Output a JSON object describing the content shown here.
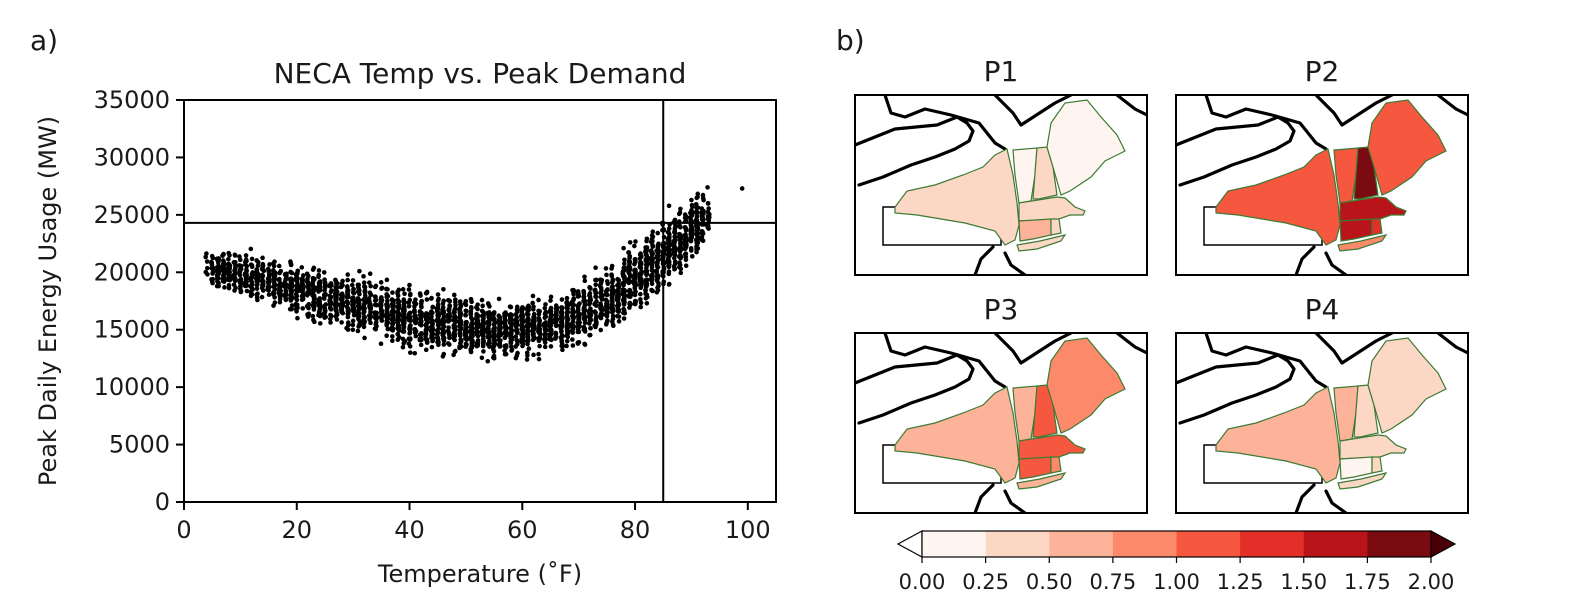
{
  "panel_a_label": "a)",
  "panel_b_label": "b)",
  "colors": {
    "markers": "#000000",
    "threshold_lines": "#000000",
    "region_border": "#3d7a34"
  },
  "chart_data": [
    {
      "type": "scatter",
      "title": "NECA Temp vs. Peak Demand",
      "xlabel": "Temperature (˚F)",
      "ylabel": "Peak Daily Energy Usage (MW)",
      "xlim": [
        0,
        105
      ],
      "ylim": [
        0,
        35000
      ],
      "xticks": [
        0,
        20,
        40,
        60,
        80,
        100
      ],
      "yticks": [
        0,
        5000,
        10000,
        15000,
        20000,
        25000,
        30000,
        35000
      ],
      "grid": false,
      "threshold_x": 85,
      "threshold_y": 24300,
      "x_range": [
        4,
        99
      ],
      "trend_center": [
        [
          5,
          20500
        ],
        [
          20,
          18500
        ],
        [
          40,
          16000
        ],
        [
          55,
          15000
        ],
        [
          65,
          15300
        ],
        [
          75,
          17500
        ],
        [
          85,
          21500
        ],
        [
          93,
          25000
        ]
      ],
      "spread_points": [
        [
          5,
          19000,
          22500
        ],
        [
          20,
          16000,
          21500
        ],
        [
          40,
          13000,
          19000
        ],
        [
          55,
          12200,
          17800
        ],
        [
          65,
          12500,
          18000
        ],
        [
          75,
          14500,
          21000
        ],
        [
          85,
          18500,
          25500
        ],
        [
          93,
          22000,
          27800
        ]
      ],
      "outlier": [
        99,
        27300
      ]
    },
    {
      "type": "heatmap",
      "colorbar_ticks": [
        "0.00",
        "0.25",
        "0.50",
        "0.75",
        "1.00",
        "1.25",
        "1.50",
        "1.75",
        "2.00"
      ],
      "colorbar_colors": [
        "#fff5f0",
        "#fdd7c5",
        "#fcb399",
        "#fc8a6a",
        "#f6573f",
        "#e32f27",
        "#b81419",
        "#7a0c11"
      ],
      "colorbar_extend": "both",
      "regions": [
        "NY",
        "VT",
        "NH",
        "ME",
        "MA",
        "CT",
        "RI",
        "LI"
      ],
      "panels": [
        {
          "title": "P1",
          "values": {
            "NY": 0.35,
            "VT": 0.15,
            "NH": 0.35,
            "ME": 0.1,
            "MA": 0.45,
            "CT": 0.55,
            "RI": 0.35,
            "LI": 0.4
          }
        },
        {
          "title": "P2",
          "values": {
            "NY": 1.1,
            "VT": 1.1,
            "NH": 1.9,
            "ME": 1.05,
            "MA": 1.6,
            "CT": 1.55,
            "RI": 1.3,
            "LI": 0.9
          }
        },
        {
          "title": "P3",
          "values": {
            "NY": 0.6,
            "VT": 0.65,
            "NH": 1.1,
            "ME": 0.9,
            "MA": 1.1,
            "CT": 1.1,
            "RI": 0.8,
            "LI": 0.55
          }
        },
        {
          "title": "P4",
          "values": {
            "NY": 0.6,
            "VT": 0.6,
            "NH": 0.45,
            "ME": 0.3,
            "MA": 0.4,
            "CT": 0.15,
            "RI": 0.3,
            "LI": 0.35
          }
        }
      ]
    }
  ]
}
